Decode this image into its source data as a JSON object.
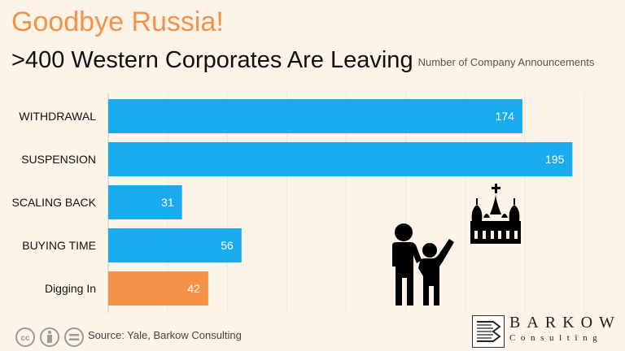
{
  "header": {
    "title": "Goodbye Russia!",
    "subtitle": ">400 Western Corporates Are Leaving",
    "subtitle_note": "Number of Company Announcements"
  },
  "footer": {
    "source": "Source: Yale, Barkow Consulting",
    "license_icons": [
      "cc-icon",
      "attribution-icon",
      "no-derivatives-icon"
    ]
  },
  "brand": {
    "name": "BARKOW",
    "tagline": "Consulting"
  },
  "colors": {
    "background": "#fdf3e9",
    "bar_default": "#1aabee",
    "bar_highlight": "#f5924a",
    "title": "#f5924a"
  },
  "illustrations": [
    "people-icon",
    "kremlin-icon"
  ],
  "chart_data": {
    "type": "bar",
    "orientation": "horizontal",
    "categories": [
      "WITHDRAWAL",
      "SUSPENSION",
      "SCALING BACK",
      "BUYING TIME",
      "Digging In"
    ],
    "values": [
      174,
      195,
      31,
      56,
      42
    ],
    "highlight": [
      "Digging In"
    ],
    "xlim": [
      0,
      200
    ],
    "grid": true,
    "data_labels": true
  }
}
